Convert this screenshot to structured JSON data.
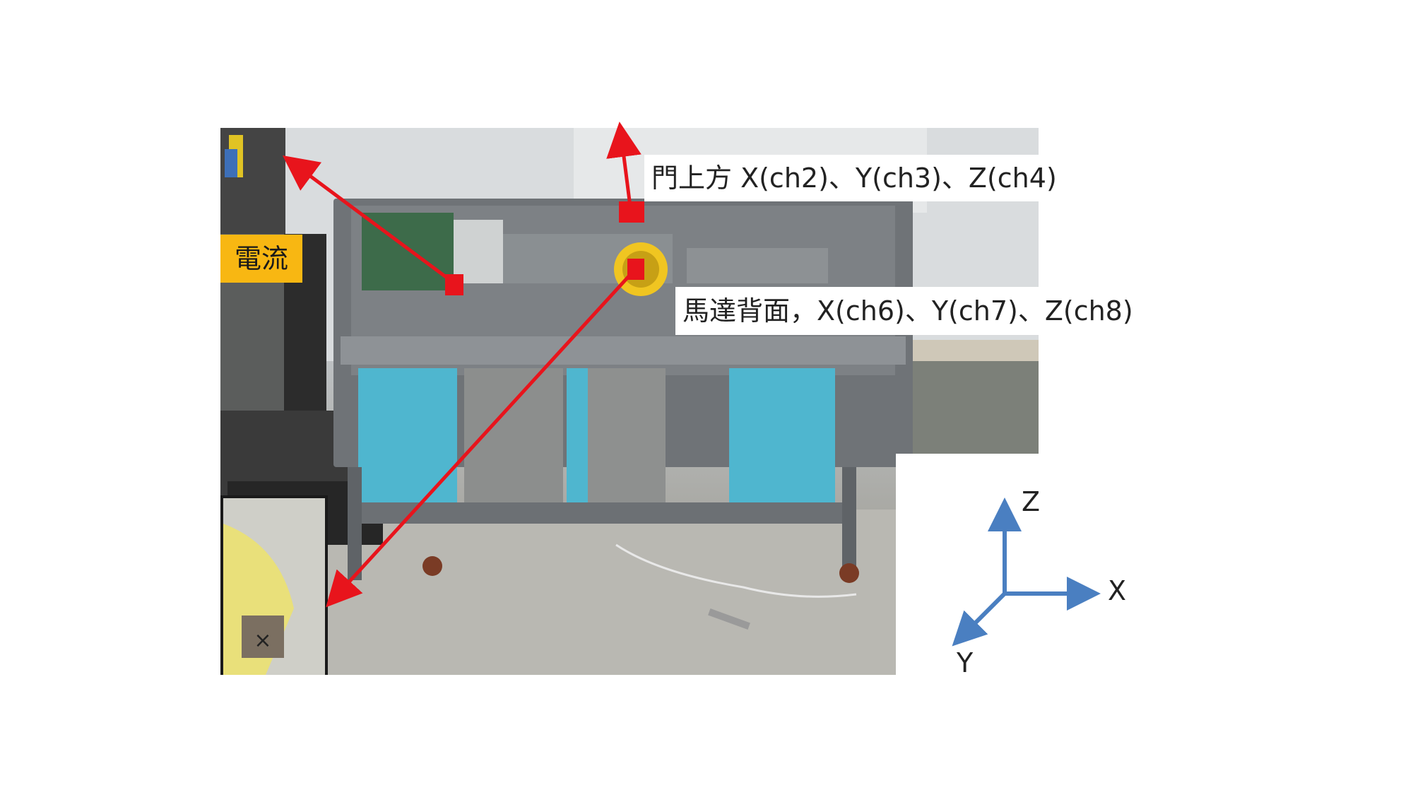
{
  "labels": {
    "door_top": "門上方 X(ch2)、Y(ch3)、Z(ch4)",
    "motor_back": "馬達背面，X(ch6)、Y(ch7)、Z(ch8)",
    "current": "電流"
  },
  "axes": {
    "x": "X",
    "y": "Y",
    "z": "Z",
    "color": "#4a7fc1"
  },
  "colors": {
    "marker": "#e8141c",
    "current_bg": "#f8b712",
    "panel_blue": "#4fb6cf"
  }
}
